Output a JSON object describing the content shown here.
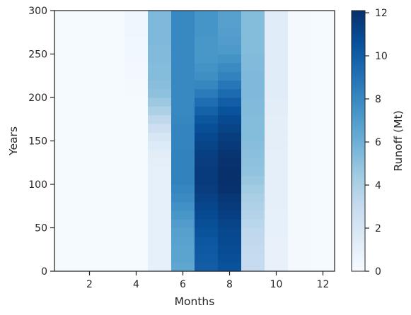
{
  "chart_data": {
    "type": "heatmap",
    "title": "",
    "xlabel": "Months",
    "ylabel": "Years",
    "xlim": [
      0.5,
      12.5
    ],
    "ylim": [
      0,
      300
    ],
    "x_ticks": [
      2,
      4,
      6,
      8,
      10,
      12
    ],
    "y_ticks": [
      0,
      50,
      100,
      150,
      200,
      250,
      300
    ],
    "x": [
      1,
      2,
      3,
      4,
      5,
      6,
      7,
      8,
      9,
      10,
      11,
      12
    ],
    "y_bands": [
      [
        0,
        10
      ],
      [
        10,
        20
      ],
      [
        20,
        30
      ],
      [
        30,
        40
      ],
      [
        40,
        50
      ],
      [
        50,
        60
      ],
      [
        60,
        70
      ],
      [
        70,
        80
      ],
      [
        80,
        90
      ],
      [
        90,
        100
      ],
      [
        100,
        110
      ],
      [
        110,
        120
      ],
      [
        120,
        130
      ],
      [
        130,
        140
      ],
      [
        140,
        150
      ],
      [
        150,
        160
      ],
      [
        160,
        170
      ],
      [
        170,
        180
      ],
      [
        180,
        190
      ],
      [
        190,
        200
      ],
      [
        200,
        210
      ],
      [
        210,
        220
      ],
      [
        220,
        230
      ],
      [
        230,
        240
      ],
      [
        240,
        250
      ],
      [
        250,
        260
      ],
      [
        260,
        270
      ],
      [
        270,
        280
      ],
      [
        280,
        290
      ],
      [
        290,
        300
      ]
    ],
    "values": [
      [
        0.1,
        0.1,
        0.1,
        0.1,
        1.0,
        6.5,
        10.0,
        10.5,
        3.0,
        0.9,
        0.2,
        0.1
      ],
      [
        0.1,
        0.1,
        0.1,
        0.1,
        1.0,
        6.6,
        10.1,
        10.7,
        3.0,
        0.9,
        0.2,
        0.1
      ],
      [
        0.1,
        0.1,
        0.1,
        0.1,
        1.0,
        6.6,
        10.2,
        10.8,
        3.1,
        0.9,
        0.2,
        0.1
      ],
      [
        0.1,
        0.1,
        0.1,
        0.1,
        1.0,
        6.7,
        10.3,
        10.9,
        3.2,
        0.9,
        0.2,
        0.1
      ],
      [
        0.1,
        0.1,
        0.1,
        0.1,
        1.0,
        6.8,
        10.5,
        11.0,
        3.3,
        1.0,
        0.2,
        0.1
      ],
      [
        0.1,
        0.1,
        0.1,
        0.1,
        1.0,
        7.0,
        10.7,
        11.2,
        3.5,
        1.0,
        0.2,
        0.1
      ],
      [
        0.1,
        0.1,
        0.1,
        0.1,
        1.0,
        7.3,
        10.9,
        11.4,
        3.7,
        1.0,
        0.2,
        0.1
      ],
      [
        0.1,
        0.1,
        0.1,
        0.1,
        1.0,
        7.6,
        11.1,
        11.6,
        3.9,
        1.1,
        0.2,
        0.1
      ],
      [
        0.1,
        0.1,
        0.1,
        0.1,
        1.0,
        7.9,
        11.3,
        11.8,
        4.1,
        1.1,
        0.2,
        0.1
      ],
      [
        0.1,
        0.1,
        0.1,
        0.1,
        1.0,
        8.1,
        11.5,
        12.0,
        4.4,
        1.1,
        0.2,
        0.1
      ],
      [
        0.1,
        0.1,
        0.1,
        0.1,
        1.0,
        8.3,
        11.6,
        12.1,
        4.7,
        1.1,
        0.2,
        0.1
      ],
      [
        0.1,
        0.1,
        0.1,
        0.1,
        1.0,
        8.3,
        11.6,
        12.1,
        4.9,
        1.1,
        0.2,
        0.1
      ],
      [
        0.1,
        0.1,
        0.1,
        0.1,
        1.1,
        8.3,
        11.5,
        12.0,
        5.0,
        1.1,
        0.2,
        0.1
      ],
      [
        0.1,
        0.1,
        0.1,
        0.1,
        1.3,
        8.3,
        11.4,
        11.9,
        5.1,
        1.1,
        0.2,
        0.1
      ],
      [
        0.1,
        0.1,
        0.1,
        0.1,
        1.6,
        8.2,
        11.2,
        11.7,
        5.2,
        1.2,
        0.2,
        0.1
      ],
      [
        0.1,
        0.1,
        0.1,
        0.1,
        2.0,
        8.2,
        11.0,
        11.5,
        5.3,
        1.2,
        0.2,
        0.1
      ],
      [
        0.1,
        0.1,
        0.1,
        0.1,
        2.6,
        8.2,
        10.7,
        11.2,
        5.3,
        1.2,
        0.2,
        0.1
      ],
      [
        0.1,
        0.1,
        0.1,
        0.1,
        3.3,
        8.1,
        10.3,
        10.9,
        5.3,
        1.2,
        0.2,
        0.1
      ],
      [
        0.1,
        0.1,
        0.1,
        0.1,
        4.0,
        8.0,
        9.8,
        10.5,
        5.4,
        1.3,
        0.2,
        0.1
      ],
      [
        0.1,
        0.1,
        0.1,
        0.1,
        4.6,
        8.0,
        9.2,
        10.0,
        5.4,
        1.3,
        0.2,
        0.1
      ],
      [
        0.1,
        0.1,
        0.1,
        0.2,
        5.0,
        8.0,
        8.6,
        9.4,
        5.5,
        1.4,
        0.2,
        0.1
      ],
      [
        0.1,
        0.1,
        0.1,
        0.2,
        5.2,
        8.0,
        8.1,
        8.8,
        5.5,
        1.4,
        0.2,
        0.1
      ],
      [
        0.1,
        0.1,
        0.1,
        0.3,
        5.3,
        8.0,
        7.7,
        8.3,
        5.5,
        1.4,
        0.2,
        0.1
      ],
      [
        0.1,
        0.1,
        0.1,
        0.3,
        5.3,
        8.0,
        7.5,
        7.9,
        5.4,
        1.4,
        0.2,
        0.1
      ],
      [
        0.1,
        0.1,
        0.1,
        0.4,
        5.4,
        8.0,
        7.3,
        7.5,
        5.4,
        1.4,
        0.2,
        0.1
      ],
      [
        0.1,
        0.1,
        0.1,
        0.4,
        5.4,
        8.0,
        7.3,
        7.2,
        5.3,
        1.4,
        0.2,
        0.1
      ],
      [
        0.1,
        0.1,
        0.1,
        0.4,
        5.5,
        8.0,
        7.3,
        7.0,
        5.3,
        1.4,
        0.2,
        0.1
      ],
      [
        0.1,
        0.1,
        0.1,
        0.5,
        5.5,
        8.0,
        7.4,
        6.9,
        5.3,
        1.4,
        0.2,
        0.1
      ],
      [
        0.1,
        0.1,
        0.1,
        0.5,
        5.5,
        8.0,
        7.4,
        6.8,
        5.3,
        1.4,
        0.2,
        0.1
      ],
      [
        0.1,
        0.1,
        0.1,
        0.5,
        5.5,
        8.0,
        7.4,
        6.8,
        5.3,
        1.4,
        0.2,
        0.1
      ]
    ],
    "colorbar": {
      "label": "Runoff (Mt)",
      "min": 0,
      "max": 12.1,
      "ticks": [
        0,
        2,
        4,
        6,
        8,
        10,
        12
      ],
      "colormap": "Blues",
      "stops": [
        "#f7fbff",
        "#deebf7",
        "#c6dbef",
        "#9ecae1",
        "#6baed6",
        "#4292c6",
        "#2171b5",
        "#08519c",
        "#08306b"
      ]
    },
    "grid": false,
    "legend": "colorbar-right"
  }
}
